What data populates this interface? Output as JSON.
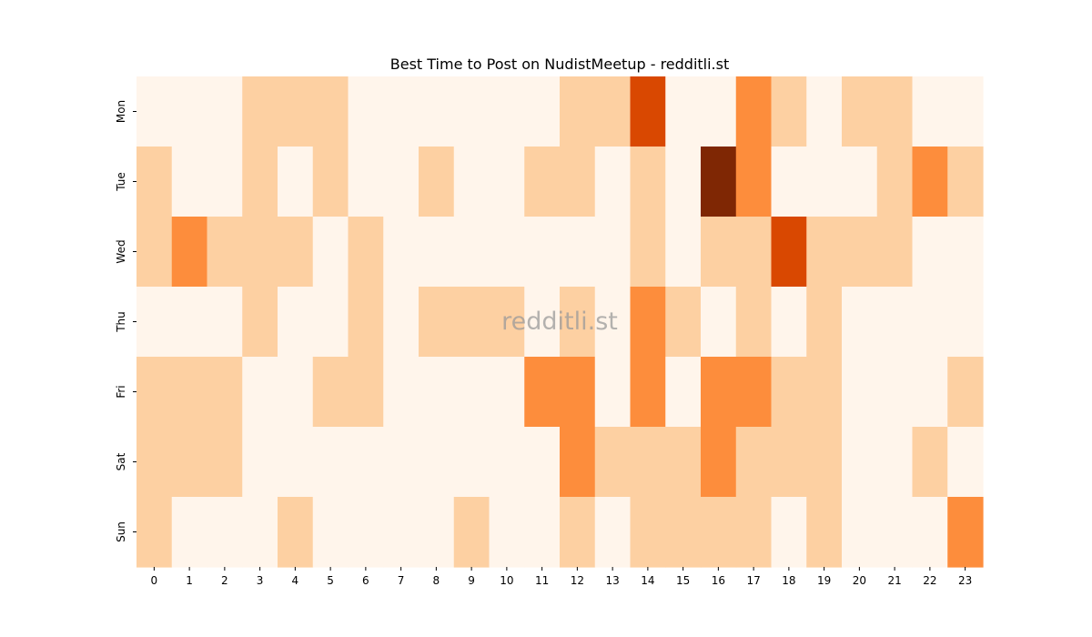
{
  "chart_data": {
    "type": "heatmap",
    "title": "Best Time to Post on NudistMeetup - redditli.st",
    "watermark": "redditli.st",
    "xlabel": "",
    "ylabel": "",
    "x": [
      "0",
      "1",
      "2",
      "3",
      "4",
      "5",
      "6",
      "7",
      "8",
      "9",
      "10",
      "11",
      "12",
      "13",
      "14",
      "15",
      "16",
      "17",
      "18",
      "19",
      "20",
      "21",
      "22",
      "23"
    ],
    "y": [
      "Mon",
      "Tue",
      "Wed",
      "Thu",
      "Fri",
      "Sat",
      "Sun"
    ],
    "colorscale": [
      "#fff5eb",
      "#fdd0a2",
      "#fd8d3c",
      "#d94801",
      "#7f2704"
    ],
    "values": [
      [
        0,
        0,
        0,
        1,
        1,
        1,
        0,
        0,
        0,
        0,
        0,
        0,
        1,
        1,
        3,
        0,
        0,
        2,
        1,
        0,
        1,
        1,
        0,
        0
      ],
      [
        1,
        0,
        0,
        1,
        0,
        1,
        0,
        0,
        1,
        0,
        0,
        1,
        1,
        0,
        1,
        0,
        4,
        2,
        0,
        0,
        0,
        1,
        2,
        1
      ],
      [
        1,
        2,
        1,
        1,
        1,
        0,
        1,
        0,
        0,
        0,
        0,
        0,
        0,
        0,
        1,
        0,
        1,
        1,
        3,
        1,
        1,
        1,
        0,
        0
      ],
      [
        0,
        0,
        0,
        1,
        0,
        0,
        1,
        0,
        1,
        1,
        1,
        0,
        1,
        0,
        2,
        1,
        0,
        1,
        0,
        1,
        0,
        0,
        0,
        0
      ],
      [
        1,
        1,
        1,
        0,
        0,
        1,
        1,
        0,
        0,
        0,
        0,
        2,
        2,
        0,
        2,
        0,
        2,
        2,
        1,
        1,
        0,
        0,
        0,
        1
      ],
      [
        1,
        1,
        1,
        0,
        0,
        0,
        0,
        0,
        0,
        0,
        0,
        0,
        2,
        1,
        1,
        1,
        2,
        1,
        1,
        1,
        0,
        0,
        1,
        0
      ],
      [
        1,
        0,
        0,
        0,
        1,
        0,
        0,
        0,
        0,
        1,
        0,
        0,
        1,
        0,
        1,
        1,
        1,
        1,
        0,
        1,
        0,
        0,
        0,
        2
      ]
    ]
  }
}
